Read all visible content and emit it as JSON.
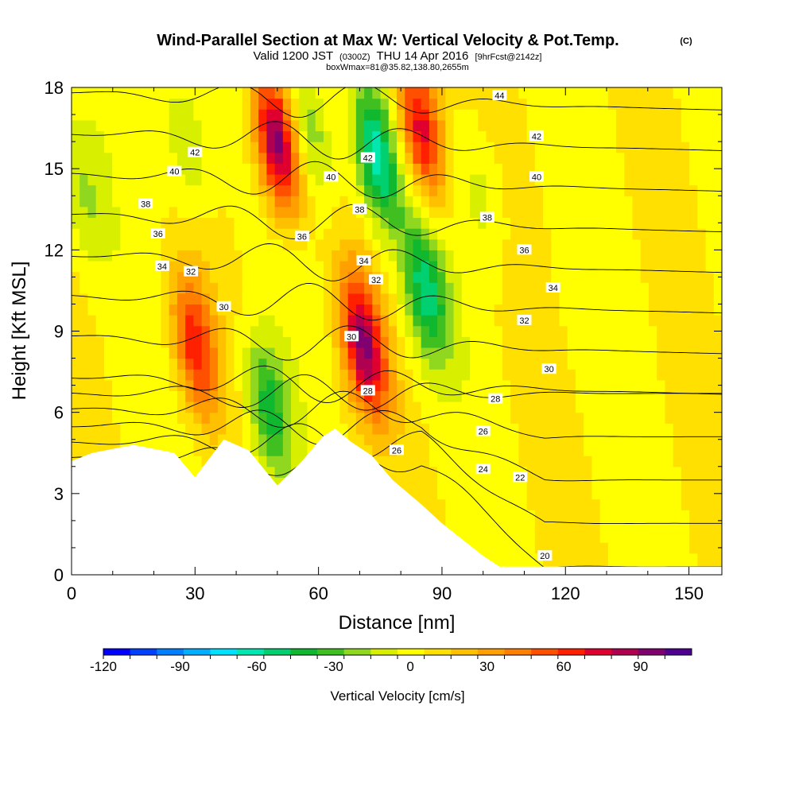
{
  "chart_data": {
    "type": "heatmap",
    "title": "Wind-Parallel Section at Max W: Vertical Velocity & Pot.Temp.",
    "title_mark": "(C)",
    "subtitle_parts": [
      "Valid 1200 JST",
      "(0300Z)",
      "THU 14 Apr 2016",
      "[9hrFcst@2142z]"
    ],
    "subtitle2": "boxWmax=81@35.82,138.80,2655m",
    "xlabel": "Distance [nm]",
    "ylabel": "Height [Kft MSL]",
    "xlim": [
      0,
      158
    ],
    "ylim": [
      0,
      18
    ],
    "x_ticks": [
      0,
      30,
      60,
      90,
      120,
      150
    ],
    "y_ticks": [
      0,
      3,
      6,
      9,
      12,
      15,
      18
    ],
    "grid": false,
    "colorbar": {
      "label": "Vertical Velocity [cm/s]",
      "range": [
        -120,
        110
      ],
      "tick_values": [
        -120,
        -90,
        -60,
        -30,
        0,
        30,
        60,
        90
      ],
      "tick_labels": [
        "-120",
        "-90",
        "-60",
        "-30",
        "0",
        "30",
        "60",
        "90"
      ],
      "colors": [
        "#0000ff",
        "#0040ff",
        "#0080ff",
        "#00b0ff",
        "#00e0ff",
        "#00e8b0",
        "#00d070",
        "#10b830",
        "#40c020",
        "#90d820",
        "#d8f000",
        "#ffff00",
        "#ffe000",
        "#ffc000",
        "#ffa000",
        "#ff8000",
        "#ff5000",
        "#ff2000",
        "#e00030",
        "#b00050",
        "#800070",
        "#500090"
      ]
    },
    "terrain_profile": [
      [
        0,
        4.2
      ],
      [
        5,
        4.5
      ],
      [
        15,
        4.8
      ],
      [
        25,
        4.5
      ],
      [
        30,
        3.6
      ],
      [
        37,
        5.0
      ],
      [
        43,
        4.6
      ],
      [
        50,
        3.3
      ],
      [
        56,
        4.2
      ],
      [
        61,
        5.1
      ],
      [
        64,
        5.4
      ],
      [
        68,
        4.9
      ],
      [
        73,
        4.4
      ],
      [
        78,
        3.5
      ],
      [
        85,
        2.6
      ],
      [
        90,
        1.9
      ],
      [
        95,
        1.3
      ],
      [
        100,
        0.7
      ],
      [
        104,
        0.3
      ],
      [
        110,
        0.3
      ],
      [
        120,
        0.3
      ],
      [
        130,
        0.3
      ],
      [
        140,
        0.3
      ],
      [
        150,
        0.3
      ],
      [
        158,
        0.3
      ]
    ],
    "w_features": [
      {
        "x": 50,
        "y": 16,
        "w": 95
      },
      {
        "x": 85,
        "y": 16.5,
        "w": 75
      },
      {
        "x": 71,
        "y": 8.5,
        "w": 85
      },
      {
        "x": 30,
        "y": 8.5,
        "w": 60
      },
      {
        "x": 58,
        "y": 16.5,
        "w": -30
      },
      {
        "x": 74,
        "y": 15.5,
        "w": -70
      },
      {
        "x": 86,
        "y": 10.5,
        "w": -55
      },
      {
        "x": 48,
        "y": 6,
        "w": -50
      },
      {
        "x": 28,
        "y": 16,
        "w": -25
      },
      {
        "x": 3,
        "y": 14,
        "w": -20
      },
      {
        "x": 100,
        "y": 14,
        "w": -15
      }
    ],
    "theta_contours": [
      20,
      22,
      24,
      26,
      28,
      30,
      32,
      34,
      36,
      38,
      40,
      42,
      44
    ],
    "contour_labels": [
      {
        "value": 44,
        "x": 104,
        "y": 17.7
      },
      {
        "value": 42,
        "x": 30,
        "y": 15.6
      },
      {
        "value": 42,
        "x": 113,
        "y": 16.2
      },
      {
        "value": 42,
        "x": 72,
        "y": 15.4
      },
      {
        "value": 40,
        "x": 25,
        "y": 14.9
      },
      {
        "value": 40,
        "x": 63,
        "y": 14.7
      },
      {
        "value": 40,
        "x": 113,
        "y": 14.7
      },
      {
        "value": 38,
        "x": 18,
        "y": 13.7
      },
      {
        "value": 38,
        "x": 70,
        "y": 13.5
      },
      {
        "value": 38,
        "x": 101,
        "y": 13.2
      },
      {
        "value": 36,
        "x": 21,
        "y": 12.6
      },
      {
        "value": 36,
        "x": 56,
        "y": 12.5
      },
      {
        "value": 36,
        "x": 110,
        "y": 12.0
      },
      {
        "value": 34,
        "x": 22,
        "y": 11.4
      },
      {
        "value": 34,
        "x": 71,
        "y": 11.6
      },
      {
        "value": 34,
        "x": 117,
        "y": 10.6
      },
      {
        "value": 32,
        "x": 29,
        "y": 11.2
      },
      {
        "value": 32,
        "x": 74,
        "y": 10.9
      },
      {
        "value": 32,
        "x": 110,
        "y": 9.4
      },
      {
        "value": 30,
        "x": 37,
        "y": 9.9
      },
      {
        "value": 30,
        "x": 68,
        "y": 8.8
      },
      {
        "value": 30,
        "x": 116,
        "y": 7.6
      },
      {
        "value": 28,
        "x": 72,
        "y": 6.8
      },
      {
        "value": 28,
        "x": 103,
        "y": 6.5
      },
      {
        "value": 26,
        "x": 79,
        "y": 4.6
      },
      {
        "value": 26,
        "x": 100,
        "y": 5.3
      },
      {
        "value": 24,
        "x": 100,
        "y": 3.9
      },
      {
        "value": 22,
        "x": 109,
        "y": 3.6
      },
      {
        "value": 20,
        "x": 115,
        "y": 0.7
      }
    ]
  }
}
